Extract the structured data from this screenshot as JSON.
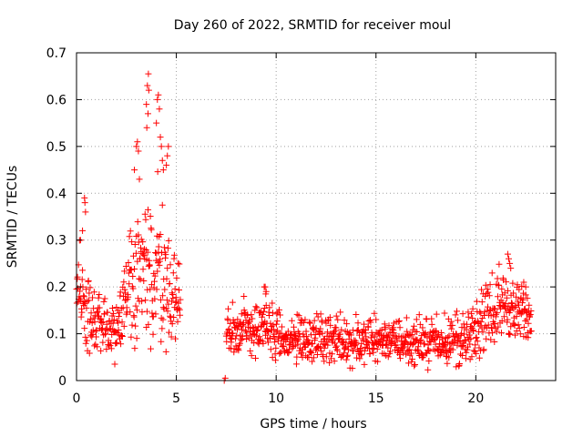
{
  "chart_data": {
    "type": "scatter",
    "title": "Day 260 of 2022, SRMTID for receiver moul",
    "xlabel": "GPS time / hours",
    "ylabel": "SRMTID / TECUs",
    "xlim": [
      0,
      24
    ],
    "ylim": [
      0,
      0.7
    ],
    "xticks": [
      0,
      5,
      10,
      15,
      20
    ],
    "xtick_labels": [
      "0",
      "5",
      "10",
      "15",
      "20"
    ],
    "yticks": [
      0,
      0.1,
      0.2,
      0.3,
      0.4,
      0.5,
      0.6,
      0.7
    ],
    "ytick_labels": [
      "0",
      "0.1",
      "0.2",
      "0.3",
      "0.4",
      "0.5",
      "0.6",
      "0.7"
    ],
    "grid": true,
    "marker": "+",
    "colors": {
      "series": "#ff0000",
      "grid": "#a0a0a0",
      "axis": "#000000"
    },
    "series": [
      {
        "name": "SRMTID",
        "segments": [
          {
            "label": "early-active",
            "x_range": [
              0,
              5.2
            ],
            "anchors": {
              "x": [
                0.0,
                0.2,
                0.4,
                0.6,
                0.8,
                1.0,
                1.3,
                1.6,
                1.9,
                2.2,
                2.5,
                2.8,
                3.0,
                3.2,
                3.4,
                3.6,
                3.8,
                4.0,
                4.2,
                4.4,
                4.6,
                4.8,
                5.0,
                5.2
              ],
              "mean": [
                0.2,
                0.19,
                0.16,
                0.14,
                0.13,
                0.12,
                0.12,
                0.11,
                0.1,
                0.14,
                0.2,
                0.22,
                0.24,
                0.22,
                0.22,
                0.2,
                0.2,
                0.22,
                0.24,
                0.22,
                0.2,
                0.18,
                0.16,
                0.15
              ],
              "spread": [
                0.08,
                0.1,
                0.08,
                0.06,
                0.06,
                0.06,
                0.05,
                0.05,
                0.05,
                0.06,
                0.07,
                0.1,
                0.14,
                0.1,
                0.12,
                0.14,
                0.12,
                0.16,
                0.14,
                0.12,
                0.1,
                0.08,
                0.07,
                0.06
              ]
            }
          },
          {
            "label": "spikes",
            "points": [
              [
                0.4,
                0.39
              ],
              [
                0.42,
                0.38
              ],
              [
                0.45,
                0.36
              ],
              [
                0.3,
                0.32
              ],
              [
                0.2,
                0.3
              ],
              [
                2.9,
                0.45
              ],
              [
                3.0,
                0.5
              ],
              [
                3.05,
                0.51
              ],
              [
                3.1,
                0.49
              ],
              [
                3.15,
                0.43
              ],
              [
                3.5,
                0.59
              ],
              [
                3.55,
                0.63
              ],
              [
                3.6,
                0.655
              ],
              [
                3.62,
                0.62
              ],
              [
                3.58,
                0.57
              ],
              [
                3.52,
                0.54
              ],
              [
                4.0,
                0.55
              ],
              [
                4.05,
                0.6
              ],
              [
                4.1,
                0.61
              ],
              [
                4.15,
                0.58
              ],
              [
                4.2,
                0.52
              ],
              [
                4.25,
                0.5
              ],
              [
                4.3,
                0.47
              ],
              [
                4.35,
                0.45
              ],
              [
                4.5,
                0.46
              ],
              [
                4.55,
                0.48
              ],
              [
                4.6,
                0.5
              ]
            ]
          },
          {
            "label": "isolated",
            "points": [
              [
                7.4,
                0.0
              ],
              [
                7.45,
                0.005
              ]
            ]
          },
          {
            "label": "later-quiet",
            "x_range": [
              7.5,
              22.8
            ],
            "anchors": {
              "x": [
                7.5,
                8.5,
                9.5,
                10.5,
                11.5,
                12.5,
                13.5,
                14.5,
                15.5,
                16.5,
                17.5,
                18.5,
                19.5,
                20.0,
                20.5,
                21.0,
                21.5,
                22.0,
                22.5,
                22.8
              ],
              "mean": [
                0.1,
                0.11,
                0.11,
                0.08,
                0.09,
                0.09,
                0.08,
                0.08,
                0.09,
                0.08,
                0.08,
                0.08,
                0.08,
                0.1,
                0.13,
                0.15,
                0.17,
                0.14,
                0.14,
                0.14
              ],
              "spread": [
                0.04,
                0.05,
                0.05,
                0.04,
                0.05,
                0.04,
                0.04,
                0.04,
                0.04,
                0.04,
                0.04,
                0.04,
                0.05,
                0.05,
                0.05,
                0.06,
                0.06,
                0.06,
                0.05,
                0.04
              ]
            }
          },
          {
            "label": "later-spikes",
            "points": [
              [
                9.4,
                0.2
              ],
              [
                9.45,
                0.2
              ],
              [
                9.5,
                0.19
              ],
              [
                9.48,
                0.185
              ],
              [
                21.6,
                0.27
              ],
              [
                21.65,
                0.26
              ],
              [
                21.7,
                0.25
              ],
              [
                21.75,
                0.24
              ],
              [
                22.4,
                0.21
              ],
              [
                22.5,
                0.2
              ]
            ]
          }
        ]
      }
    ]
  }
}
